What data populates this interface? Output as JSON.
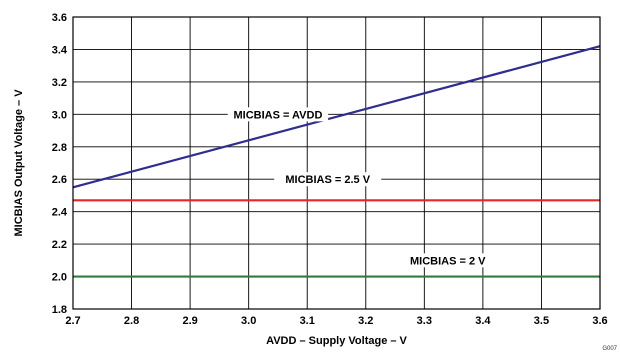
{
  "chart_data": {
    "type": "line",
    "xlabel": "AVDD – Supply Voltage – V",
    "ylabel": "MICBIAS Output Voltage – V",
    "xlim": [
      2.7,
      3.6
    ],
    "ylim": [
      1.8,
      3.6
    ],
    "x_ticks": [
      "2.7",
      "2.8",
      "2.9",
      "3.0",
      "3.1",
      "3.2",
      "3.3",
      "3.4",
      "3.5",
      "3.6"
    ],
    "y_ticks": [
      "1.8",
      "2.0",
      "2.2",
      "2.4",
      "2.6",
      "2.8",
      "3.0",
      "3.2",
      "3.4",
      "3.6"
    ],
    "grid": true,
    "series": [
      {
        "name": "MICBIAS = AVDD",
        "color": "#2e2e8f",
        "x": [
          2.7,
          3.6
        ],
        "y": [
          2.55,
          3.42
        ]
      },
      {
        "name": "MICBIAS = 2.5 V",
        "color": "#e8262a",
        "x": [
          2.7,
          3.6
        ],
        "y": [
          2.47,
          2.47
        ]
      },
      {
        "name": "MICBIAS = 2 V",
        "color": "#2e7d3e",
        "x": [
          2.7,
          3.6
        ],
        "y": [
          2.0,
          2.0
        ]
      }
    ],
    "figure_code": "G007"
  }
}
